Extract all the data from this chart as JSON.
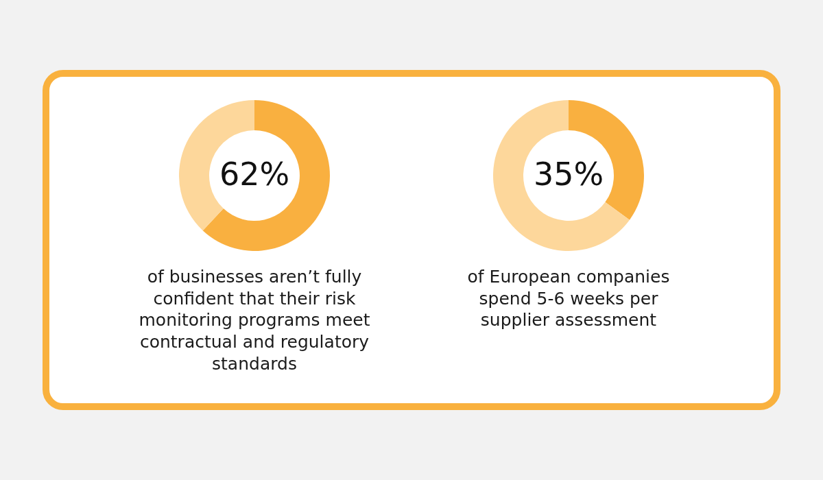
{
  "chart_data": [
    {
      "type": "donut",
      "categories": [
        null,
        null
      ],
      "values": [
        62,
        38
      ],
      "colors": [
        "#f9b040",
        "#fdd79b"
      ],
      "value_labels": [
        "62%",
        null
      ],
      "annotations": [
        "of businesses aren’t fully confident that their risk monitoring programs meet contractual and regulatory standards"
      ]
    },
    {
      "type": "donut",
      "categories": [
        null,
        null
      ],
      "values": [
        35,
        65
      ],
      "colors": [
        "#f9b040",
        "#fdd79b"
      ],
      "value_labels": [
        "35%",
        null
      ],
      "annotations": [
        "of European companies spend 5-6 weeks per supplier assessment"
      ]
    }
  ]
}
